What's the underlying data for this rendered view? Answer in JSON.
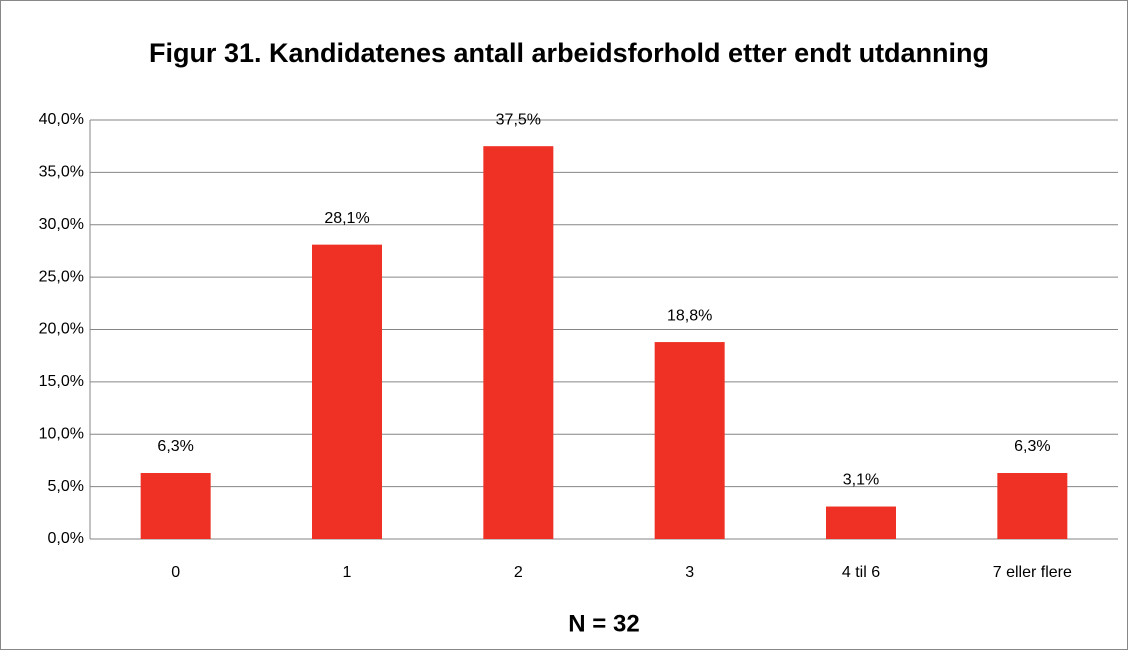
{
  "chart_data": {
    "type": "bar",
    "title": "Figur 31. Kandidatenes antall arbeidsforhold etter endt utdanning",
    "x_label": "N = 32",
    "categories": [
      "0",
      "1",
      "2",
      "3",
      "4 til 6",
      "7 eller flere"
    ],
    "values": [
      6.3,
      28.1,
      37.5,
      18.8,
      3.1,
      6.3
    ],
    "value_labels": [
      "6,3%",
      "28,1%",
      "37,5%",
      "18,8%",
      "3,1%",
      "6,3%"
    ],
    "color": "#ee3124",
    "ylim": [
      0,
      40
    ],
    "yticks": [
      {
        "value": 0,
        "label": "0,0%"
      },
      {
        "value": 5,
        "label": "5,0%"
      },
      {
        "value": 10,
        "label": "10,0%"
      },
      {
        "value": 15,
        "label": "15,0%"
      },
      {
        "value": 20,
        "label": "20,0%"
      },
      {
        "value": 25,
        "label": "25,0%"
      },
      {
        "value": 30,
        "label": "30,0%"
      },
      {
        "value": 35,
        "label": "35,0%"
      },
      {
        "value": 40,
        "label": "40,0%"
      }
    ],
    "grid": true
  }
}
